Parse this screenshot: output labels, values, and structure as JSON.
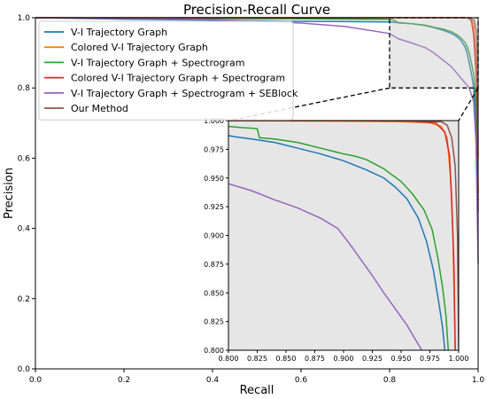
{
  "chart_data": {
    "type": "line",
    "title": "Precision-Recall Curve",
    "xlabel": "Recall",
    "ylabel": "Precision",
    "xlim": [
      0.0,
      1.0
    ],
    "ylim": [
      0.0,
      1.0
    ],
    "x_ticks": [
      "0.0",
      "0.2",
      "0.4",
      "0.6",
      "0.8",
      "1.0"
    ],
    "y_ticks": [
      "0.0",
      "0.2",
      "0.4",
      "0.6",
      "0.8",
      "1.0"
    ],
    "grid": false,
    "legend_position": "top-left",
    "series": [
      {
        "name": "V-I Trajectory Graph",
        "color": "#1f77b4",
        "points": [
          [
            0.0,
            1.0
          ],
          [
            0.2,
            0.996
          ],
          [
            0.4,
            0.993
          ],
          [
            0.6,
            0.99
          ],
          [
            0.8,
            0.988
          ],
          [
            0.82,
            0.986
          ],
          [
            0.85,
            0.983
          ],
          [
            0.88,
            0.978
          ],
          [
            0.9,
            0.972
          ],
          [
            0.92,
            0.965
          ],
          [
            0.94,
            0.955
          ],
          [
            0.95,
            0.948
          ],
          [
            0.96,
            0.937
          ],
          [
            0.97,
            0.918
          ],
          [
            0.975,
            0.9
          ],
          [
            0.98,
            0.87
          ],
          [
            0.985,
            0.84
          ],
          [
            0.99,
            0.8
          ],
          [
            0.995,
            0.7
          ],
          [
            1.0,
            0.48
          ]
        ]
      },
      {
        "name": "Colored V-I Trajectory Graph",
        "color": "#ff7f0e",
        "points": [
          [
            0.0,
            1.0
          ],
          [
            0.6,
            1.0
          ],
          [
            0.9,
            1.0
          ],
          [
            0.96,
            1.0
          ],
          [
            0.975,
            0.999
          ],
          [
            0.985,
            0.996
          ],
          [
            0.99,
            0.98
          ],
          [
            0.995,
            0.9
          ],
          [
            0.997,
            0.8
          ],
          [
            1.0,
            0.5
          ]
        ]
      },
      {
        "name": "V-I Trajectory Graph + Spectrogram",
        "color": "#2ca02c",
        "points": [
          [
            0.0,
            1.0
          ],
          [
            0.4,
            0.998
          ],
          [
            0.6,
            0.997
          ],
          [
            0.8,
            0.995
          ],
          [
            0.81,
            0.993
          ],
          [
            0.82,
            0.985
          ],
          [
            0.85,
            0.983
          ],
          [
            0.88,
            0.979
          ],
          [
            0.9,
            0.973
          ],
          [
            0.92,
            0.968
          ],
          [
            0.94,
            0.96
          ],
          [
            0.95,
            0.953
          ],
          [
            0.96,
            0.944
          ],
          [
            0.97,
            0.93
          ],
          [
            0.975,
            0.918
          ],
          [
            0.98,
            0.9
          ],
          [
            0.985,
            0.87
          ],
          [
            0.99,
            0.84
          ],
          [
            0.993,
            0.8
          ],
          [
            0.997,
            0.72
          ],
          [
            1.0,
            0.5
          ]
        ]
      },
      {
        "name": "Colored V-I Trajectory Graph + Spectrogram",
        "color": "#d62728",
        "points": [
          [
            0.0,
            1.0
          ],
          [
            0.6,
            1.0
          ],
          [
            0.9,
            1.0
          ],
          [
            0.97,
            1.0
          ],
          [
            0.98,
            0.998
          ],
          [
            0.985,
            0.99
          ],
          [
            0.99,
            0.95
          ],
          [
            0.995,
            0.85
          ],
          [
            0.998,
            0.75
          ],
          [
            1.0,
            0.45
          ]
        ]
      },
      {
        "name": "V-I Trajectory Graph + Spectrogram + SEBlock",
        "color": "#9467bd",
        "points": [
          [
            0.0,
            1.0
          ],
          [
            0.2,
            0.998
          ],
          [
            0.4,
            0.995
          ],
          [
            0.6,
            0.985
          ],
          [
            0.7,
            0.975
          ],
          [
            0.8,
            0.955
          ],
          [
            0.82,
            0.94
          ],
          [
            0.85,
            0.928
          ],
          [
            0.88,
            0.915
          ],
          [
            0.9,
            0.9
          ],
          [
            0.92,
            0.88
          ],
          [
            0.94,
            0.86
          ],
          [
            0.95,
            0.845
          ],
          [
            0.96,
            0.83
          ],
          [
            0.97,
            0.815
          ],
          [
            0.98,
            0.8
          ],
          [
            0.99,
            0.76
          ],
          [
            0.995,
            0.65
          ],
          [
            1.0,
            0.3
          ]
        ]
      },
      {
        "name": "Our Method",
        "color": "#8c564b",
        "points": [
          [
            0.0,
            1.0
          ],
          [
            0.6,
            1.0
          ],
          [
            0.9,
            1.0
          ],
          [
            0.98,
            1.0
          ],
          [
            0.988,
            0.998
          ],
          [
            0.992,
            0.99
          ],
          [
            0.996,
            0.96
          ],
          [
            0.998,
            0.9
          ],
          [
            1.0,
            0.6
          ]
        ]
      }
    ],
    "inset": {
      "xlim": [
        0.8,
        1.0
      ],
      "ylim": [
        0.8,
        1.0
      ],
      "x_ticks": [
        "0.800",
        "0.825",
        "0.850",
        "0.875",
        "0.900",
        "0.925",
        "0.950",
        "0.975",
        "1.000"
      ],
      "y_ticks": [
        "0.800",
        "0.825",
        "0.850",
        "0.875",
        "0.900",
        "0.925",
        "0.950",
        "0.975",
        "1.000"
      ],
      "background": "#e6e6e6",
      "series": [
        {
          "color": "#1f77b4",
          "points": [
            [
              0.8,
              0.987
            ],
            [
              0.805,
              0.986
            ],
            [
              0.82,
              0.984
            ],
            [
              0.84,
              0.981
            ],
            [
              0.86,
              0.976
            ],
            [
              0.88,
              0.971
            ],
            [
              0.9,
              0.965
            ],
            [
              0.92,
              0.957
            ],
            [
              0.935,
              0.95
            ],
            [
              0.945,
              0.942
            ],
            [
              0.955,
              0.932
            ],
            [
              0.965,
              0.915
            ],
            [
              0.972,
              0.895
            ],
            [
              0.978,
              0.87
            ],
            [
              0.983,
              0.84
            ],
            [
              0.986,
              0.82
            ],
            [
              0.988,
              0.8
            ]
          ]
        },
        {
          "color": "#2ca02c",
          "points": [
            [
              0.8,
              0.995
            ],
            [
              0.81,
              0.994
            ],
            [
              0.825,
              0.993
            ],
            [
              0.827,
              0.985
            ],
            [
              0.84,
              0.984
            ],
            [
              0.86,
              0.981
            ],
            [
              0.88,
              0.976
            ],
            [
              0.9,
              0.971
            ],
            [
              0.91,
              0.969
            ],
            [
              0.92,
              0.966
            ],
            [
              0.935,
              0.958
            ],
            [
              0.95,
              0.947
            ],
            [
              0.96,
              0.936
            ],
            [
              0.97,
              0.922
            ],
            [
              0.977,
              0.905
            ],
            [
              0.982,
              0.88
            ],
            [
              0.986,
              0.855
            ],
            [
              0.989,
              0.83
            ],
            [
              0.991,
              0.8
            ]
          ]
        },
        {
          "color": "#9467bd",
          "points": [
            [
              0.8,
              0.945
            ],
            [
              0.82,
              0.939
            ],
            [
              0.84,
              0.931
            ],
            [
              0.86,
              0.924
            ],
            [
              0.88,
              0.915
            ],
            [
              0.895,
              0.906
            ],
            [
              0.905,
              0.893
            ],
            [
              0.915,
              0.879
            ],
            [
              0.925,
              0.865
            ],
            [
              0.935,
              0.85
            ],
            [
              0.945,
              0.836
            ],
            [
              0.955,
              0.822
            ],
            [
              0.962,
              0.81
            ],
            [
              0.968,
              0.8
            ]
          ]
        },
        {
          "color": "#ff7f0e",
          "points": [
            [
              0.8,
              1.0
            ],
            [
              0.9,
              0.9995
            ],
            [
              0.95,
              0.999
            ],
            [
              0.975,
              0.998
            ],
            [
              0.985,
              0.995
            ],
            [
              0.99,
              0.985
            ],
            [
              0.993,
              0.95
            ],
            [
              0.995,
              0.9
            ],
            [
              0.996,
              0.85
            ],
            [
              0.997,
              0.8
            ]
          ]
        },
        {
          "color": "#d62728",
          "points": [
            [
              0.8,
              1.0
            ],
            [
              0.9,
              1.0
            ],
            [
              0.96,
              0.9995
            ],
            [
              0.98,
              0.998
            ],
            [
              0.988,
              0.99
            ],
            [
              0.992,
              0.97
            ],
            [
              0.994,
              0.93
            ],
            [
              0.996,
              0.87
            ],
            [
              0.997,
              0.8
            ]
          ]
        },
        {
          "color": "#8c564b",
          "points": [
            [
              0.8,
              1.0
            ],
            [
              0.95,
              1.0
            ],
            [
              0.985,
              0.999
            ],
            [
              0.99,
              0.996
            ],
            [
              0.994,
              0.985
            ],
            [
              0.997,
              0.96
            ],
            [
              0.999,
              0.9
            ],
            [
              1.0,
              0.8
            ]
          ]
        }
      ]
    }
  }
}
